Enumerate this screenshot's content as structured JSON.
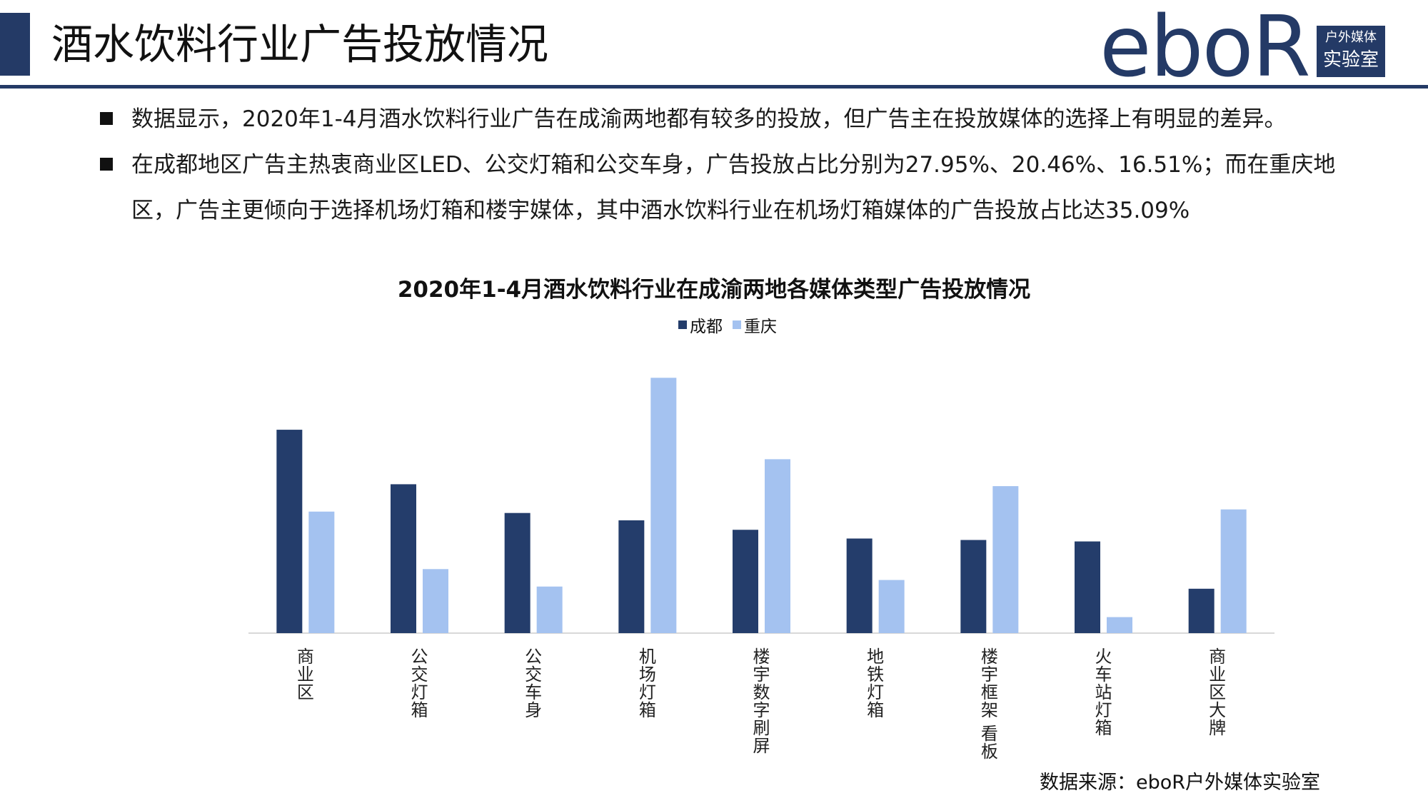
{
  "header": {
    "title": "酒水饮料行业广告投放情况",
    "accent_color": "#243a66"
  },
  "logo": {
    "word": "eboR",
    "box_line1": "户外媒体",
    "box_line2": "实验室"
  },
  "bullets": [
    {
      "text": "数据显示，2020年1-4月酒水饮料行业广告在成渝两地都有较多的投放，但广告主在投放媒体的选择上有明显的差异。"
    },
    {
      "text": "在成都地区广告主热衷商业区LED、公交灯箱和公交车身，广告投放占比分别为27.95%、20.46%、16.51%；而在重庆地区，广告主更倾向于选择机场灯箱和楼宇媒体，其中酒水饮料行业在机场灯箱媒体的广告投放占比达35.09%"
    }
  ],
  "chart_data": {
    "type": "bar",
    "title": "2020年1-4月酒水饮料行业在成渝两地各媒体类型广告投放情况",
    "categories": [
      "商业区",
      "公交灯箱",
      "公交车身",
      "机场灯箱",
      "楼宇数字刷屏",
      "地铁灯箱",
      "楼宇框架 看板",
      "火车站灯箱",
      "商业区大牌"
    ],
    "series": [
      {
        "name": "成都",
        "color": "#243d6b",
        "values": [
          27.95,
          20.46,
          16.51,
          15.5,
          14.2,
          13.0,
          12.8,
          12.6,
          6.1
        ]
      },
      {
        "name": "重庆",
        "color": "#a4c2f0",
        "values": [
          16.7,
          8.8,
          6.4,
          35.09,
          23.9,
          7.3,
          20.2,
          2.2,
          17.0
        ]
      }
    ],
    "ylim": [
      0,
      36
    ],
    "legend_position": "top",
    "grid": false,
    "axis_line_color": "#d9d9d9"
  },
  "source": {
    "text": "数据来源：eboR户外媒体实验室"
  }
}
